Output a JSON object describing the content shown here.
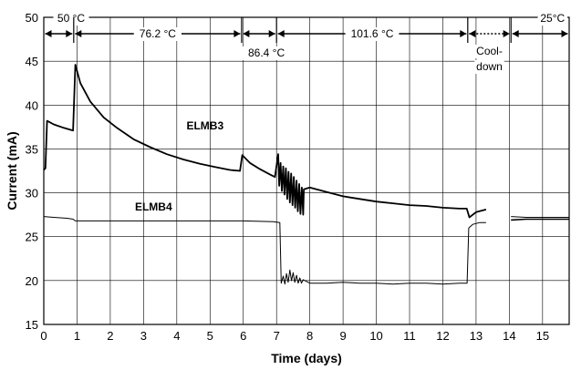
{
  "chart_data": {
    "type": "line",
    "xlabel": "Time (days)",
    "ylabel": "Current (mA)",
    "xlim": [
      0,
      15.8
    ],
    "ylim": [
      15,
      50
    ],
    "x_ticks": [
      0,
      1,
      2,
      3,
      4,
      5,
      6,
      7,
      8,
      9,
      10,
      11,
      12,
      13,
      14,
      15
    ],
    "y_ticks": [
      15,
      20,
      25,
      30,
      35,
      40,
      45,
      50
    ],
    "grid": true,
    "series_labels": [
      {
        "text": "ELMB3",
        "x": 4.85,
        "y": 37.2
      },
      {
        "text": "ELMB4",
        "x": 3.3,
        "y": 28.0
      }
    ],
    "phases": [
      {
        "label": "50 °C",
        "from": 0,
        "to": 0.9,
        "label_pos": "top",
        "line": "solid"
      },
      {
        "label": "76.2 °C",
        "from": 0.9,
        "to": 5.95,
        "label_pos": "top",
        "line": "solid"
      },
      {
        "label": "86.4 °C",
        "from": 5.95,
        "to": 7.0,
        "label_pos": "below",
        "line": "solid"
      },
      {
        "label": "101.6 °C",
        "from": 7.0,
        "to": 12.75,
        "label_pos": "top",
        "line": "solid"
      },
      {
        "label": "Cool-down",
        "from": 12.75,
        "to": 14.05,
        "label_pos": "below2",
        "line": "dotted"
      },
      {
        "label": "25°C",
        "from": 14.05,
        "to": 15.8,
        "label_pos": "top",
        "line": "solid"
      }
    ],
    "series": [
      {
        "name": "ELMB3",
        "points": [
          [
            0.0,
            32.6
          ],
          [
            0.05,
            32.8
          ],
          [
            0.1,
            38.2
          ],
          [
            0.3,
            37.8
          ],
          [
            0.6,
            37.4
          ],
          [
            0.88,
            37.1
          ],
          [
            0.95,
            44.6
          ],
          [
            1.1,
            42.5
          ],
          [
            1.4,
            40.4
          ],
          [
            1.8,
            38.6
          ],
          [
            2.2,
            37.4
          ],
          [
            2.7,
            36.1
          ],
          [
            3.2,
            35.2
          ],
          [
            3.7,
            34.4
          ],
          [
            4.2,
            33.8
          ],
          [
            4.7,
            33.3
          ],
          [
            5.2,
            32.9
          ],
          [
            5.6,
            32.6
          ],
          [
            5.9,
            32.5
          ],
          [
            5.97,
            34.3
          ],
          [
            6.2,
            33.4
          ],
          [
            6.5,
            32.7
          ],
          [
            6.8,
            32.1
          ],
          [
            6.95,
            31.8
          ],
          [
            7.05,
            34.4
          ],
          [
            7.08,
            30.8
          ],
          [
            7.12,
            33.4
          ],
          [
            7.16,
            30.2
          ],
          [
            7.2,
            33.0
          ],
          [
            7.24,
            29.8
          ],
          [
            7.28,
            32.8
          ],
          [
            7.32,
            29.3
          ],
          [
            7.36,
            32.4
          ],
          [
            7.4,
            28.9
          ],
          [
            7.44,
            32.2
          ],
          [
            7.48,
            28.6
          ],
          [
            7.52,
            31.8
          ],
          [
            7.56,
            28.3
          ],
          [
            7.6,
            31.4
          ],
          [
            7.64,
            27.9
          ],
          [
            7.68,
            31.0
          ],
          [
            7.72,
            27.6
          ],
          [
            7.76,
            30.6
          ],
          [
            7.8,
            27.5
          ],
          [
            7.82,
            30.4
          ],
          [
            8.0,
            30.6
          ],
          [
            8.5,
            30.1
          ],
          [
            9.0,
            29.6
          ],
          [
            9.5,
            29.3
          ],
          [
            10.0,
            29.0
          ],
          [
            10.5,
            28.8
          ],
          [
            11.0,
            28.6
          ],
          [
            11.5,
            28.5
          ],
          [
            12.0,
            28.3
          ],
          [
            12.5,
            28.2
          ],
          [
            12.72,
            28.2
          ],
          [
            12.8,
            27.2
          ],
          [
            13.0,
            27.8
          ],
          [
            13.3,
            28.1
          ]
        ]
      },
      {
        "name": "ELMB4",
        "points": [
          [
            0.0,
            27.3
          ],
          [
            0.3,
            27.2
          ],
          [
            0.7,
            27.1
          ],
          [
            0.88,
            27.0
          ],
          [
            0.95,
            26.8
          ],
          [
            2.0,
            26.8
          ],
          [
            3.0,
            26.8
          ],
          [
            4.0,
            26.8
          ],
          [
            5.0,
            26.8
          ],
          [
            6.0,
            26.8
          ],
          [
            6.9,
            26.7
          ],
          [
            7.1,
            26.6
          ],
          [
            7.14,
            19.7
          ],
          [
            7.2,
            20.5
          ],
          [
            7.25,
            19.6
          ],
          [
            7.3,
            20.8
          ],
          [
            7.35,
            19.8
          ],
          [
            7.4,
            21.2
          ],
          [
            7.45,
            20.0
          ],
          [
            7.5,
            20.9
          ],
          [
            7.55,
            19.8
          ],
          [
            7.6,
            20.6
          ],
          [
            7.65,
            19.7
          ],
          [
            7.7,
            20.3
          ],
          [
            7.75,
            19.7
          ],
          [
            7.8,
            20.1
          ],
          [
            8.0,
            19.7
          ],
          [
            8.5,
            19.7
          ],
          [
            9.0,
            19.8
          ],
          [
            9.5,
            19.7
          ],
          [
            10.0,
            19.7
          ],
          [
            10.5,
            19.6
          ],
          [
            11.0,
            19.7
          ],
          [
            11.5,
            19.7
          ],
          [
            12.0,
            19.6
          ],
          [
            12.5,
            19.7
          ],
          [
            12.73,
            19.7
          ],
          [
            12.78,
            26.0
          ],
          [
            12.9,
            26.4
          ],
          [
            13.1,
            26.6
          ],
          [
            13.3,
            26.6
          ],
          [
            14.05,
            27.3
          ],
          [
            14.5,
            27.2
          ],
          [
            15.0,
            27.2
          ],
          [
            15.8,
            27.2
          ]
        ]
      }
    ],
    "extra_segments": [
      {
        "name": "ELMB3-late",
        "points": [
          [
            14.05,
            26.9
          ],
          [
            14.5,
            27.0
          ],
          [
            15.0,
            27.0
          ],
          [
            15.8,
            27.0
          ]
        ]
      }
    ]
  }
}
